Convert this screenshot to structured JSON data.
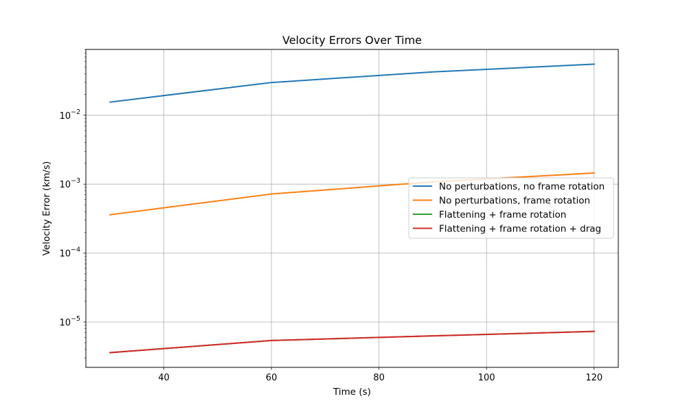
{
  "chart_data": {
    "type": "line",
    "title": "Velocity Errors Over Time",
    "xlabel": "Time (s)",
    "ylabel": "Velocity Error (km/s)",
    "x_scale": "linear",
    "y_scale": "log",
    "xlim": [
      25.5,
      124.5
    ],
    "ylim": [
      2.2e-06,
      0.09
    ],
    "x_ticks": [
      40,
      60,
      80,
      100,
      120
    ],
    "y_ticks": [
      {
        "value": 1e-05,
        "base": "10",
        "exp": "−5"
      },
      {
        "value": 0.0001,
        "base": "10",
        "exp": "−4"
      },
      {
        "value": 0.001,
        "base": "10",
        "exp": "−3"
      },
      {
        "value": 0.01,
        "base": "10",
        "exp": "−2"
      }
    ],
    "grid": true,
    "legend_position": "center-right",
    "x": [
      30,
      60,
      90,
      120
    ],
    "series": [
      {
        "name": "No perturbations, no frame rotation",
        "color": "#1f77b4",
        "values": [
          0.0155,
          0.0298,
          0.0425,
          0.055
        ]
      },
      {
        "name": "No perturbations, frame rotation",
        "color": "#ff7f0e",
        "values": [
          0.00036,
          0.00072,
          0.00108,
          0.00145
        ]
      },
      {
        "name": "Flattening + frame rotation",
        "color": "#2ca02c",
        "values": [
          3.6e-06,
          5.4e-06,
          6.3e-06,
          7.3e-06
        ]
      },
      {
        "name": "Flattening + frame rotation + drag",
        "color": "#d62728",
        "values": [
          3.6e-06,
          5.4e-06,
          6.3e-06,
          7.3e-06
        ]
      }
    ]
  }
}
